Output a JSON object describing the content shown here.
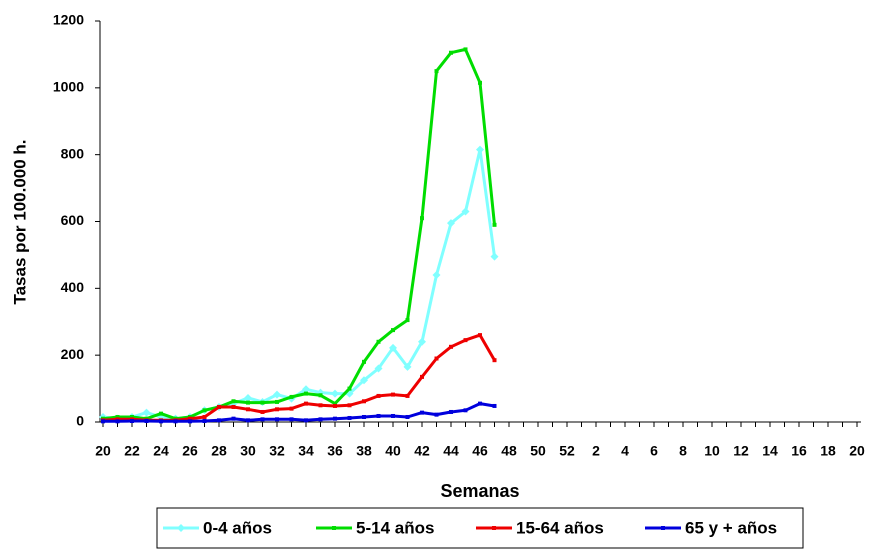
{
  "chart_data": {
    "type": "line",
    "y_label": "Tasas por 100.000 h.",
    "x_label": "Semanas",
    "categories": [
      "20",
      null,
      "22",
      null,
      "24",
      null,
      "26",
      null,
      "28",
      null,
      "30",
      null,
      "32",
      null,
      "34",
      null,
      "36",
      null,
      "38",
      null,
      "40",
      null,
      "42",
      null,
      "44",
      null,
      "46",
      null,
      "48",
      null,
      "50",
      null,
      "52",
      null,
      "2",
      null,
      "4",
      null,
      "6",
      null,
      "8",
      null,
      "10",
      null,
      "12",
      null,
      "14",
      null,
      "16",
      null,
      "18",
      null,
      "20"
    ],
    "series": [
      {
        "name": "0-4 años",
        "color": "#80ffff",
        "values": [
          15,
          10,
          15,
          28,
          15,
          10,
          15,
          35,
          45,
          55,
          72,
          60,
          82,
          70,
          98,
          88,
          85,
          85,
          125,
          160,
          222,
          165,
          240,
          440,
          595,
          630,
          815,
          495,
          null,
          null,
          null,
          null,
          null,
          null,
          null,
          null,
          null,
          null,
          null,
          null,
          null,
          null,
          null,
          null,
          null,
          null,
          null,
          null,
          null,
          null,
          null,
          null,
          null
        ]
      },
      {
        "name": "5-14 años",
        "color": "#00dd00",
        "values": [
          10,
          15,
          15,
          10,
          25,
          10,
          15,
          35,
          45,
          62,
          58,
          58,
          60,
          75,
          85,
          80,
          55,
          100,
          180,
          240,
          275,
          305,
          610,
          1050,
          1105,
          1115,
          1015,
          590,
          null,
          null,
          null,
          null,
          null,
          null,
          null,
          null,
          null,
          null,
          null,
          null,
          null,
          null,
          null,
          null,
          null,
          null,
          null,
          null,
          null,
          null,
          null,
          null,
          null
        ]
      },
      {
        "name": "15-64 años",
        "color": "#ee0000",
        "values": [
          5,
          8,
          8,
          5,
          5,
          5,
          10,
          15,
          45,
          45,
          38,
          30,
          38,
          40,
          55,
          50,
          48,
          50,
          62,
          78,
          82,
          78,
          135,
          190,
          225,
          245,
          260,
          185,
          null,
          null,
          null,
          null,
          null,
          null,
          null,
          null,
          null,
          null,
          null,
          null,
          null,
          null,
          null,
          null,
          null,
          null,
          null,
          null,
          null,
          null,
          null,
          null,
          null
        ]
      },
      {
        "name": "65 y + años",
        "color": "#0000dd",
        "values": [
          2,
          2,
          3,
          3,
          2,
          2,
          2,
          3,
          5,
          10,
          5,
          8,
          8,
          8,
          5,
          8,
          10,
          12,
          15,
          18,
          18,
          15,
          28,
          22,
          30,
          35,
          55,
          48,
          null,
          null,
          null,
          null,
          null,
          null,
          null,
          null,
          null,
          null,
          null,
          null,
          null,
          null,
          null,
          null,
          null,
          null,
          null,
          null,
          null,
          null,
          null,
          null,
          null
        ]
      }
    ],
    "ylim": [
      0,
      1200
    ],
    "yticks": [
      0,
      200,
      400,
      600,
      800,
      1000,
      1200
    ]
  }
}
